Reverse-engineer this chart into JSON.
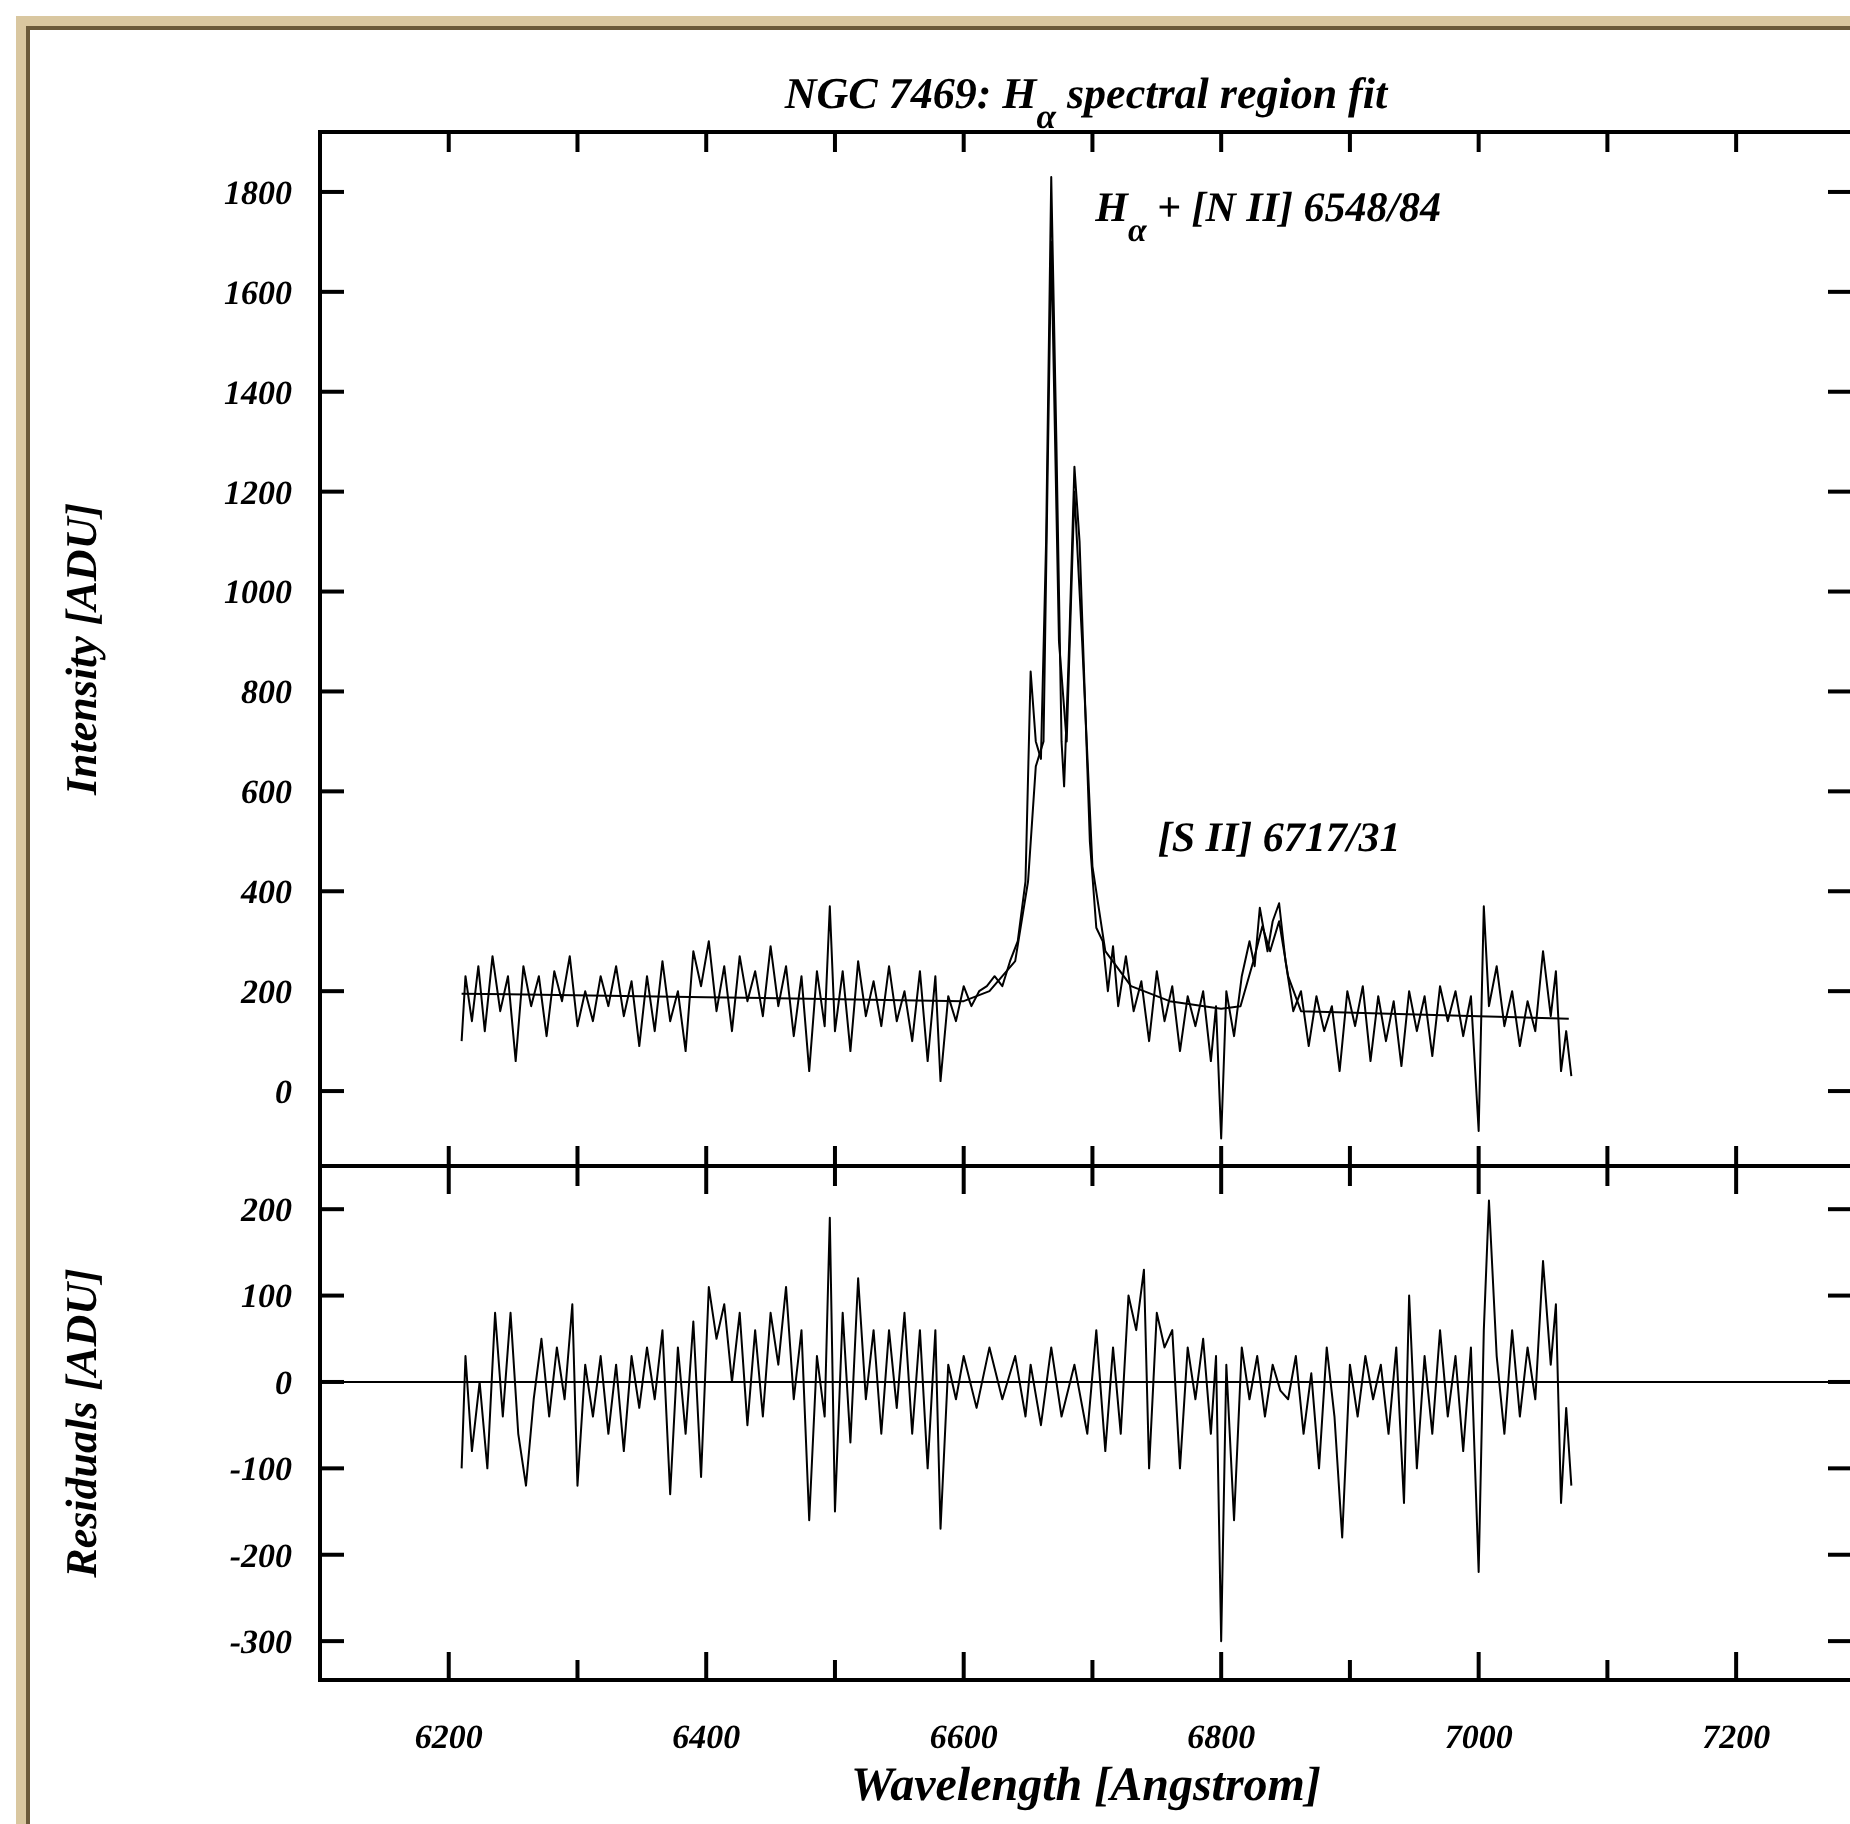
{
  "chart_data": [
    {
      "type": "line",
      "title": "NGC 7469: H$_{α}$ spectral region fit",
      "ylabel": "Intensity [ADU]",
      "xlim": [
        6100,
        7290
      ],
      "ylim": [
        -150,
        1920
      ],
      "tick_labels": "y",
      "line_style": "solid",
      "grid": false,
      "xticks": [
        {
          "value": 6200,
          "label": null
        },
        {
          "value": 6300,
          "label": null
        },
        {
          "value": 6400,
          "label": null
        },
        {
          "value": 6500,
          "label": null
        },
        {
          "value": 6600,
          "label": null
        },
        {
          "value": 6700,
          "label": null
        },
        {
          "value": 6800,
          "label": null
        },
        {
          "value": 6900,
          "label": null
        },
        {
          "value": 7000,
          "label": null
        },
        {
          "value": 7100,
          "label": null
        },
        {
          "value": 7200,
          "label": null
        }
      ],
      "yticks": [
        0,
        200,
        400,
        600,
        800,
        1000,
        1200,
        1400,
        1600,
        1800
      ],
      "annotations": [
        {
          "text": "H$_{α}$ + [N II] 6548/84",
          "x": 6668,
          "y": 1830
        },
        {
          "text": "[S II] 6717/31",
          "x": 6845,
          "y": 376
        }
      ],
      "series": [
        {
          "color": "#000000",
          "x": [
            6210,
            6213,
            6218,
            6223,
            6228,
            6234,
            6240,
            6246,
            6252,
            6258,
            6264,
            6270,
            6276,
            6282,
            6288,
            6294,
            6300,
            6306,
            6312,
            6318,
            6324,
            6330,
            6336,
            6342,
            6348,
            6354,
            6360,
            6366,
            6372,
            6378,
            6384,
            6390,
            6396,
            6402,
            6408,
            6414,
            6420,
            6426,
            6432,
            6438,
            6444,
            6450,
            6456,
            6462,
            6468,
            6474,
            6480,
            6486,
            6492,
            6496,
            6500,
            6506,
            6512,
            6518,
            6524,
            6530,
            6536,
            6542,
            6548,
            6554,
            6560,
            6566,
            6572,
            6578,
            6582,
            6588,
            6594,
            6600,
            6606,
            6612,
            6618,
            6624,
            6630,
            6636,
            6642,
            6648,
            6652,
            6656,
            6660,
            6664,
            6668,
            6672,
            6676,
            6678,
            6682,
            6686,
            6690,
            6694,
            6698,
            6703,
            6708,
            6712,
            6716,
            6720,
            6726,
            6732,
            6738,
            6744,
            6750,
            6756,
            6762,
            6768,
            6774,
            6780,
            6786,
            6792,
            6796,
            6800,
            6804,
            6810,
            6816,
            6822,
            6826,
            6830,
            6836,
            6840,
            6845,
            6850,
            6856,
            6862,
            6868,
            6874,
            6880,
            6886,
            6892,
            6898,
            6904,
            6910,
            6916,
            6922,
            6928,
            6934,
            6940,
            6946,
            6952,
            6958,
            6964,
            6970,
            6976,
            6982,
            6988,
            6994,
            7000,
            7004,
            7008,
            7014,
            7020,
            7026,
            7032,
            7038,
            7044,
            7050,
            7056,
            7060,
            7064,
            7068,
            7072
          ],
          "values": [
            100,
            230,
            140,
            250,
            120,
            270,
            160,
            230,
            60,
            250,
            170,
            230,
            110,
            240,
            180,
            270,
            130,
            200,
            140,
            230,
            170,
            250,
            150,
            220,
            90,
            230,
            120,
            260,
            140,
            200,
            80,
            280,
            210,
            300,
            160,
            250,
            120,
            270,
            180,
            240,
            150,
            290,
            170,
            250,
            110,
            230,
            40,
            240,
            130,
            370,
            120,
            240,
            80,
            260,
            150,
            220,
            130,
            250,
            140,
            200,
            100,
            240,
            60,
            230,
            20,
            190,
            140,
            210,
            170,
            200,
            210,
            230,
            210,
            260,
            300,
            420,
            840,
            700,
            665,
            1100,
            1830,
            1300,
            700,
            610,
            900,
            1250,
            1100,
            800,
            500,
            327,
            300,
            200,
            290,
            170,
            270,
            160,
            220,
            100,
            240,
            140,
            210,
            80,
            190,
            130,
            200,
            60,
            170,
            -95,
            200,
            110,
            230,
            300,
            250,
            367,
            280,
            340,
            376,
            260,
            160,
            200,
            90,
            190,
            120,
            170,
            40,
            200,
            130,
            210,
            60,
            190,
            100,
            180,
            50,
            200,
            120,
            190,
            70,
            210,
            140,
            200,
            110,
            190,
            -80,
            370,
            170,
            250,
            130,
            200,
            90,
            180,
            120,
            280,
            150,
            240,
            40,
            120,
            30
          ]
        },
        {
          "type": "line",
          "color": "#000000",
          "x": [
            6210,
            6400,
            6600,
            6620,
            6640,
            6650,
            6656,
            6662,
            6668,
            6674,
            6680,
            6686,
            6692,
            6700,
            6710,
            6730,
            6760,
            6800,
            6815,
            6825,
            6832,
            6838,
            6845,
            6852,
            6862,
            7000,
            7070
          ],
          "values": [
            195,
            188,
            180,
            200,
            260,
            420,
            650,
            700,
            1700,
            900,
            700,
            1200,
            900,
            450,
            280,
            210,
            180,
            165,
            170,
            260,
            330,
            280,
            340,
            230,
            160,
            150,
            145
          ]
        }
      ]
    },
    {
      "type": "line",
      "xlabel": "Wavelength [Angstrom]",
      "ylabel": "Residuals [ADU]",
      "xlim": [
        6100,
        7290
      ],
      "ylim": [
        -345,
        250
      ],
      "line_style": "solid",
      "grid": false,
      "xticks": [
        6200,
        {
          "value": 6300,
          "label": null
        },
        6400,
        {
          "value": 6500,
          "label": null
        },
        6600,
        {
          "value": 6700,
          "label": null
        },
        6800,
        {
          "value": 6900,
          "label": null
        },
        7000,
        {
          "value": 7100,
          "label": null
        },
        7200
      ],
      "yticks": [
        -300,
        -200,
        -100,
        0,
        100,
        200
      ],
      "ref_lines": [
        {
          "axis": "y",
          "value": 0,
          "color": "#000000"
        }
      ],
      "series": [
        {
          "color": "#000000",
          "x": [
            6210,
            6213,
            6218,
            6224,
            6230,
            6236,
            6242,
            6248,
            6254,
            6260,
            6266,
            6272,
            6278,
            6284,
            6290,
            6296,
            6300,
            6306,
            6312,
            6318,
            6324,
            6330,
            6336,
            6342,
            6348,
            6354,
            6360,
            6366,
            6372,
            6378,
            6384,
            6390,
            6396,
            6402,
            6408,
            6414,
            6420,
            6426,
            6432,
            6438,
            6444,
            6450,
            6456,
            6462,
            6468,
            6474,
            6480,
            6486,
            6492,
            6496,
            6500,
            6506,
            6512,
            6518,
            6524,
            6530,
            6536,
            6542,
            6548,
            6554,
            6560,
            6566,
            6572,
            6578,
            6582,
            6588,
            6594,
            6600,
            6610,
            6620,
            6630,
            6640,
            6648,
            6652,
            6660,
            6668,
            6676,
            6686,
            6696,
            6703,
            6710,
            6716,
            6722,
            6728,
            6734,
            6740,
            6744,
            6750,
            6756,
            6762,
            6768,
            6774,
            6780,
            6786,
            6792,
            6796,
            6800,
            6804,
            6810,
            6816,
            6822,
            6828,
            6834,
            6840,
            6846,
            6852,
            6858,
            6864,
            6870,
            6876,
            6882,
            6888,
            6894,
            6900,
            6906,
            6912,
            6918,
            6924,
            6930,
            6936,
            6942,
            6946,
            6952,
            6958,
            6964,
            6970,
            6976,
            6982,
            6988,
            6994,
            7000,
            7004,
            7008,
            7014,
            7020,
            7026,
            7032,
            7038,
            7044,
            7050,
            7056,
            7060,
            7064,
            7068,
            7072
          ],
          "values": [
            -100,
            30,
            -80,
            0,
            -100,
            80,
            -40,
            80,
            -60,
            -120,
            -20,
            50,
            -40,
            40,
            -20,
            90,
            -120,
            20,
            -40,
            30,
            -60,
            20,
            -80,
            30,
            -30,
            40,
            -20,
            60,
            -130,
            40,
            -60,
            70,
            -110,
            110,
            50,
            90,
            0,
            80,
            -50,
            60,
            -40,
            80,
            20,
            110,
            -20,
            60,
            -160,
            30,
            -40,
            190,
            -150,
            80,
            -70,
            120,
            -20,
            60,
            -60,
            60,
            -30,
            80,
            -60,
            60,
            -100,
            60,
            -170,
            20,
            -20,
            30,
            -30,
            40,
            -20,
            30,
            -40,
            20,
            -50,
            40,
            -40,
            20,
            -60,
            60,
            -80,
            40,
            -60,
            100,
            60,
            130,
            -100,
            80,
            40,
            60,
            -100,
            40,
            -20,
            50,
            -60,
            30,
            -300,
            20,
            -160,
            40,
            -20,
            30,
            -40,
            20,
            -10,
            -20,
            30,
            -60,
            10,
            -100,
            40,
            -40,
            -180,
            20,
            -40,
            30,
            -20,
            20,
            -60,
            40,
            -140,
            100,
            -100,
            30,
            -60,
            60,
            -40,
            30,
            -80,
            40,
            -220,
            60,
            210,
            30,
            -60,
            60,
            -40,
            40,
            -20,
            140,
            20,
            90,
            -140,
            -30,
            -120
          ]
        }
      ]
    }
  ]
}
